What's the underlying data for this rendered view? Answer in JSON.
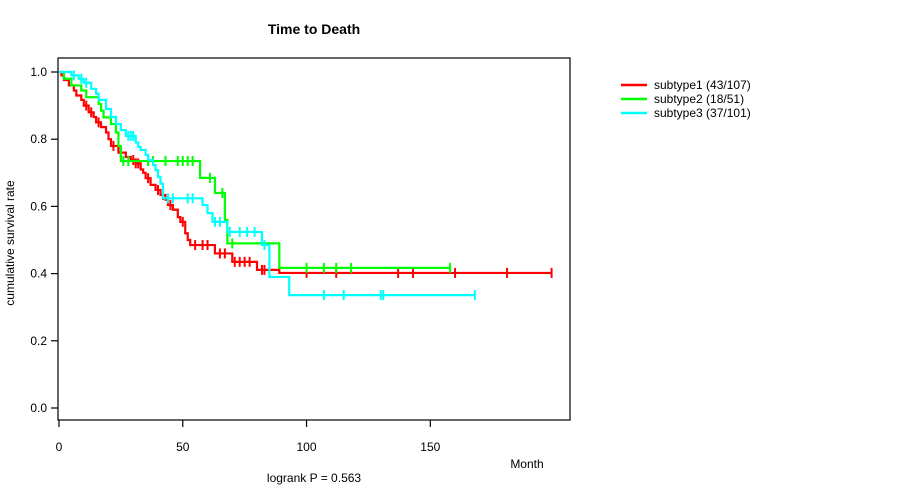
{
  "chart_data": {
    "type": "line",
    "subtype": "kaplan-meier-step-survival",
    "title": "Time to Death",
    "xlabel": "Month",
    "ylabel": "cumulative survival rate",
    "annotation": "logrank P = 0.563",
    "xlim": [
      0,
      206
    ],
    "ylim": [
      0.0,
      1.0
    ],
    "x_ticks": [
      0,
      50,
      100,
      150
    ],
    "y_ticks": [
      0.0,
      0.2,
      0.4,
      0.6,
      0.8,
      1.0
    ],
    "grid": false,
    "legend_position": "right",
    "axis_color": "#000000",
    "series": [
      {
        "name": "subtype1 (43/107)",
        "color": "#FF0000",
        "steps": [
          [
            0,
            1.0
          ],
          [
            1,
            0.99
          ],
          [
            2,
            0.976
          ],
          [
            4,
            0.96
          ],
          [
            6,
            0.945
          ],
          [
            7,
            0.93
          ],
          [
            9,
            0.917
          ],
          [
            10,
            0.9
          ],
          [
            12,
            0.88
          ],
          [
            14,
            0.866
          ],
          [
            15,
            0.85
          ],
          [
            17,
            0.836
          ],
          [
            19,
            0.82
          ],
          [
            20,
            0.8
          ],
          [
            21,
            0.78
          ],
          [
            24,
            0.76
          ],
          [
            27,
            0.747
          ],
          [
            29,
            0.738
          ],
          [
            31,
            0.728
          ],
          [
            33,
            0.71
          ],
          [
            34,
            0.7
          ],
          [
            35,
            0.684
          ],
          [
            37,
            0.664
          ],
          [
            39,
            0.649
          ],
          [
            41,
            0.634
          ],
          [
            43,
            0.62
          ],
          [
            44,
            0.604
          ],
          [
            46,
            0.59
          ],
          [
            48,
            0.568
          ],
          [
            49,
            0.554
          ],
          [
            51,
            0.52
          ],
          [
            52,
            0.5
          ],
          [
            53,
            0.485
          ],
          [
            63,
            0.46
          ],
          [
            70,
            0.435
          ],
          [
            80,
            0.411
          ],
          [
            89,
            0.402
          ],
          [
            199,
            0.402
          ]
        ],
        "censor_months": [
          11,
          13,
          16,
          22,
          25,
          30,
          31,
          32,
          36,
          40,
          42,
          45,
          50,
          55,
          58,
          60,
          65,
          67,
          71,
          73,
          75,
          77,
          82,
          83,
          100,
          112,
          137,
          143,
          160,
          181,
          199
        ]
      },
      {
        "name": "subtype2 (18/51)",
        "color": "#00FF00",
        "steps": [
          [
            0,
            1.0
          ],
          [
            2,
            0.98
          ],
          [
            5,
            0.96
          ],
          [
            9,
            0.945
          ],
          [
            11,
            0.925
          ],
          [
            16,
            0.905
          ],
          [
            17,
            0.885
          ],
          [
            18,
            0.865
          ],
          [
            21,
            0.845
          ],
          [
            23,
            0.82
          ],
          [
            24,
            0.78
          ],
          [
            25,
            0.735
          ],
          [
            57,
            0.685
          ],
          [
            63,
            0.64
          ],
          [
            67,
            0.56
          ],
          [
            68,
            0.49
          ],
          [
            89,
            0.417
          ],
          [
            158,
            0.417
          ]
        ],
        "censor_months": [
          26,
          28,
          36,
          38,
          43,
          48,
          50,
          52,
          54,
          61,
          66,
          70,
          100,
          107,
          112,
          118,
          158
        ]
      },
      {
        "name": "subtype3 (37/101)",
        "color": "#00FFFF",
        "steps": [
          [
            0,
            1.0
          ],
          [
            5,
            0.99
          ],
          [
            8,
            0.98
          ],
          [
            10,
            0.968
          ],
          [
            13,
            0.95
          ],
          [
            15,
            0.935
          ],
          [
            16,
            0.917
          ],
          [
            19,
            0.89
          ],
          [
            21,
            0.866
          ],
          [
            23,
            0.845
          ],
          [
            25,
            0.827
          ],
          [
            27,
            0.81
          ],
          [
            31,
            0.79
          ],
          [
            32,
            0.777
          ],
          [
            33,
            0.768
          ],
          [
            35,
            0.753
          ],
          [
            36,
            0.738
          ],
          [
            38,
            0.723
          ],
          [
            39,
            0.708
          ],
          [
            40,
            0.688
          ],
          [
            41,
            0.668
          ],
          [
            42,
            0.624
          ],
          [
            58,
            0.604
          ],
          [
            60,
            0.58
          ],
          [
            62,
            0.554
          ],
          [
            68,
            0.524
          ],
          [
            82,
            0.485
          ],
          [
            85,
            0.39
          ],
          [
            93,
            0.336
          ],
          [
            168,
            0.336
          ]
        ],
        "censor_months": [
          6,
          9,
          11,
          28,
          29,
          30,
          44,
          46,
          52,
          54,
          63,
          65,
          69,
          73,
          76,
          79,
          83,
          107,
          115,
          130,
          131,
          168
        ]
      }
    ]
  }
}
